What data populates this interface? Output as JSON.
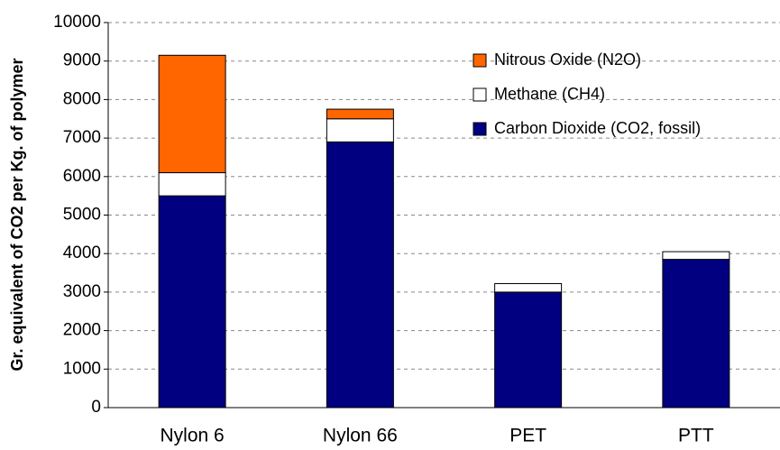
{
  "chart_data": {
    "type": "stacked_bar",
    "y_label": "Gr. equivalent of CO2 per Kg. of polymer",
    "categories": [
      "Nylon 6",
      "Nylon 66",
      "PET",
      "PTT"
    ],
    "series": [
      {
        "name": "Carbon Dioxide (CO2, fossil)",
        "color": "#000080",
        "values": [
          5500,
          6900,
          3000,
          3850
        ]
      },
      {
        "name": "Methane (CH4)",
        "color": "#ffffff",
        "values": [
          600,
          600,
          220,
          200
        ]
      },
      {
        "name": "Nitrous Oxide (N2O)",
        "color": "#ff6600",
        "values": [
          3050,
          250,
          0,
          0
        ]
      }
    ],
    "ylim": [
      0,
      10000
    ],
    "yticks": [
      0,
      1000,
      2000,
      3000,
      4000,
      5000,
      6000,
      7000,
      8000,
      9000,
      10000
    ],
    "grid": true,
    "legend": "top-right"
  }
}
